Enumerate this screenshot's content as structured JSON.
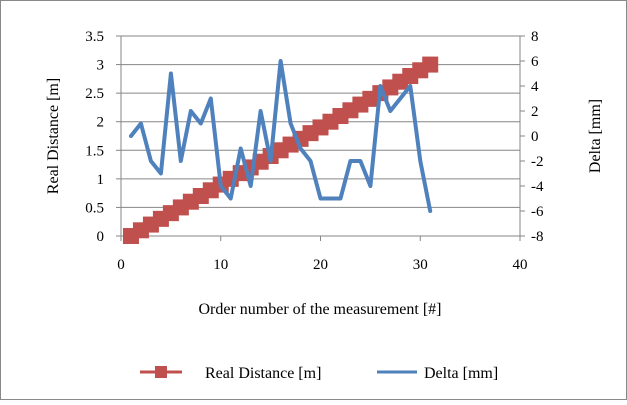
{
  "chart_data": {
    "type": "line",
    "title": "",
    "xlabel": "Order number of the measurement [#]",
    "ylabel": "Real  Distance [m]",
    "y2label": "Delta [mm]",
    "xlim": [
      0,
      40
    ],
    "ylim": [
      0,
      3.5
    ],
    "y2lim": [
      -8,
      8
    ],
    "xticks": [
      0,
      10,
      20,
      30,
      40
    ],
    "yticks": [
      0,
      0.5,
      1,
      1.5,
      2,
      2.5,
      3,
      3.5
    ],
    "y2ticks": [
      -8,
      -6,
      -4,
      -2,
      0,
      2,
      4,
      6,
      8
    ],
    "grid": "horizontal",
    "legend_position": "bottom",
    "series": [
      {
        "name": "Real Distance [m]",
        "axis": "left",
        "color": "#C0504D",
        "marker": "square",
        "x": [
          1,
          2,
          3,
          4,
          5,
          6,
          7,
          8,
          9,
          10,
          11,
          12,
          13,
          14,
          15,
          16,
          17,
          18,
          19,
          20,
          21,
          22,
          23,
          24,
          25,
          26,
          27,
          28,
          29,
          30,
          31
        ],
        "values": [
          0,
          0.1,
          0.2,
          0.3,
          0.4,
          0.5,
          0.6,
          0.7,
          0.8,
          0.9,
          1.0,
          1.1,
          1.2,
          1.3,
          1.4,
          1.5,
          1.6,
          1.7,
          1.8,
          1.9,
          2.0,
          2.1,
          2.2,
          2.3,
          2.4,
          2.5,
          2.6,
          2.7,
          2.8,
          2.9,
          3.0
        ]
      },
      {
        "name": "Delta [mm]",
        "axis": "right",
        "color": "#4F81BD",
        "marker": "none",
        "x": [
          1,
          2,
          3,
          4,
          5,
          6,
          7,
          8,
          9,
          10,
          11,
          12,
          13,
          14,
          15,
          16,
          17,
          18,
          19,
          20,
          21,
          22,
          23,
          24,
          25,
          26,
          27,
          28,
          29,
          30,
          31
        ],
        "values": [
          0,
          1,
          -2,
          -3,
          5,
          -2,
          2,
          1,
          3,
          -4,
          -5,
          -1,
          -4,
          2,
          -2,
          6,
          1,
          -1,
          -2,
          -5,
          -5,
          -5,
          -2,
          -2,
          -4,
          4,
          2,
          3,
          4,
          -2,
          -6
        ]
      }
    ]
  }
}
